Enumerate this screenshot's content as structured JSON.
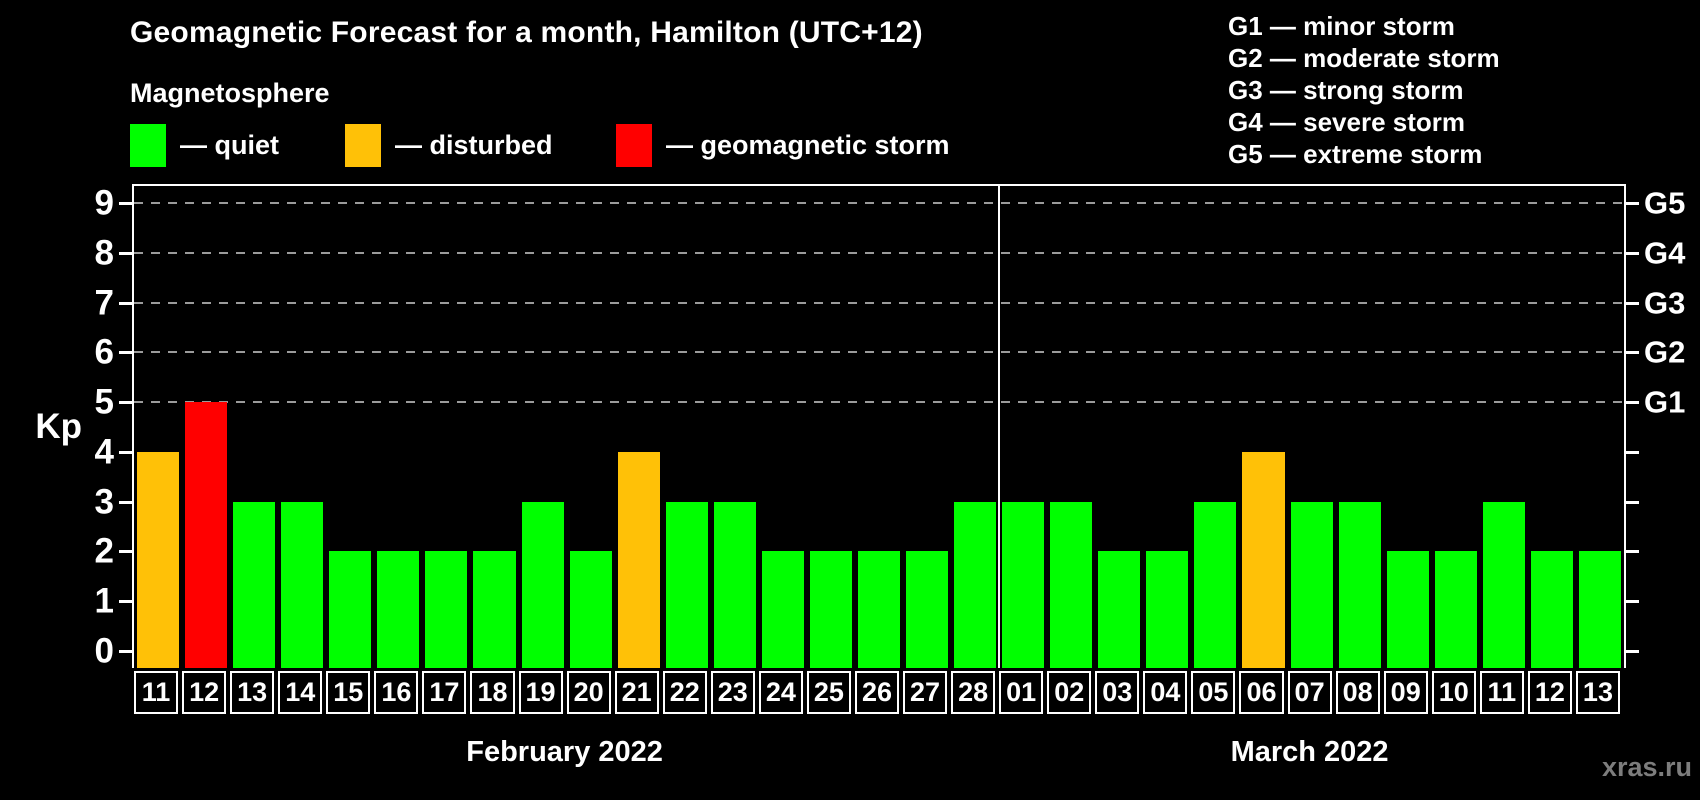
{
  "title": "Geomagnetic Forecast for a month, Hamilton (UTC+12)",
  "subtitle": "Magnetosphere",
  "legend": {
    "items": [
      {
        "name": "quiet",
        "label": "— quiet",
        "color": "#00ff00"
      },
      {
        "name": "disturbed",
        "label": "— disturbed",
        "color": "#ffc107"
      },
      {
        "name": "geomagnetic-storm",
        "label": "— geomagnetic storm",
        "color": "#ff0000"
      }
    ]
  },
  "g_scale_legend": [
    "G1 — minor storm",
    "G2 — moderate storm",
    "G3 — strong storm",
    "G4 — severe storm",
    "G5 — extreme storm"
  ],
  "watermark": "xras.ru",
  "chart_data": {
    "type": "bar",
    "title": "Geomagnetic Forecast for a month, Hamilton (UTC+12)",
    "ylabel": "Kp",
    "ylim": [
      -0.35,
      9.35
    ],
    "y_ticks": [
      0,
      1,
      2,
      3,
      4,
      5,
      6,
      7,
      8,
      9
    ],
    "gridlines_at": [
      5,
      6,
      7,
      8,
      9
    ],
    "right_axis_labels": {
      "5": "G1",
      "6": "G2",
      "7": "G3",
      "8": "G4",
      "9": "G5"
    },
    "legend_position": "top",
    "grid": "horizontal-dashed-G-levels-only",
    "months": [
      {
        "label": "February 2022",
        "days": 18
      },
      {
        "label": "March 2022",
        "days": 13
      }
    ],
    "categories": [
      "11",
      "12",
      "13",
      "14",
      "15",
      "16",
      "17",
      "18",
      "19",
      "20",
      "21",
      "22",
      "23",
      "24",
      "25",
      "26",
      "27",
      "28",
      "01",
      "02",
      "03",
      "04",
      "05",
      "06",
      "07",
      "08",
      "09",
      "10",
      "11",
      "12",
      "13"
    ],
    "values": [
      4,
      5,
      3,
      3,
      2,
      2,
      2,
      2,
      3,
      2,
      4,
      3,
      3,
      2,
      2,
      2,
      2,
      3,
      3,
      3,
      2,
      2,
      3,
      4,
      3,
      3,
      2,
      2,
      3,
      2,
      2
    ],
    "thresholds": {
      "disturbed_min": 4,
      "storm_min": 5
    },
    "colors": {
      "quiet": "#00ff00",
      "disturbed": "#ffc107",
      "storm": "#ff0000",
      "background": "#000000",
      "axis": "#ffffff",
      "gridline": "#9b9b9b"
    }
  }
}
